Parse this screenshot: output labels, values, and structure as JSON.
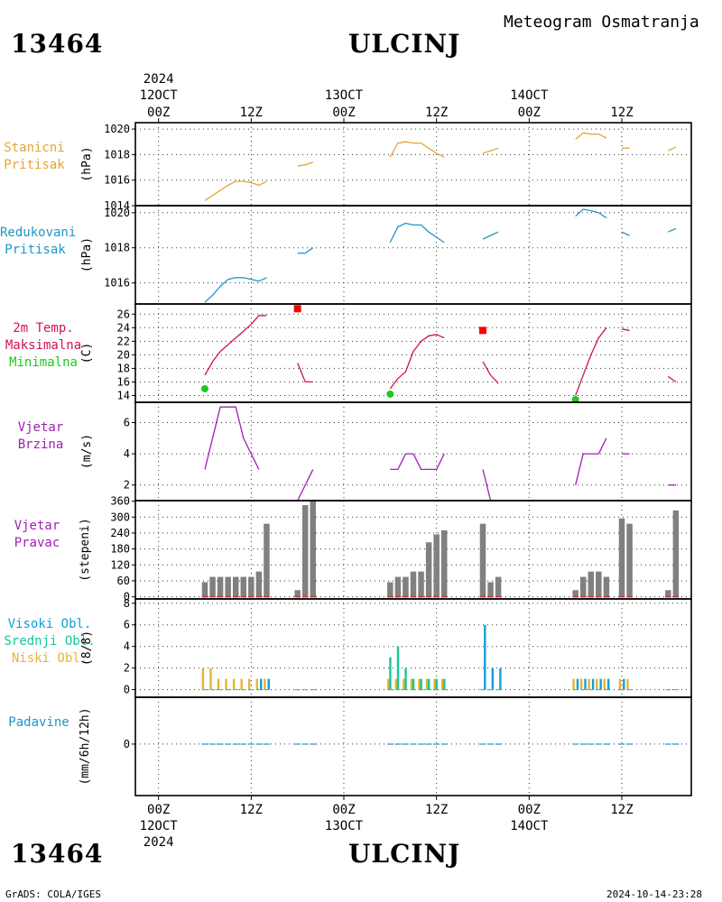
{
  "header": {
    "station_id": "13464",
    "station_name": "ULCINJ",
    "product": "Meteogram Osmatranja"
  },
  "footer": {
    "station_id": "13464",
    "station_name": "ULCINJ",
    "credit": "GrADS: COLA/IGES",
    "timestamp": "2024-10-14-23:28"
  },
  "time_axis": {
    "year": "2024",
    "ticks": [
      {
        "hour": 0,
        "top": "00Z",
        "date": "12OCT"
      },
      {
        "hour": 12,
        "top": "12Z",
        "date": ""
      },
      {
        "hour": 24,
        "top": "00Z",
        "date": "13OCT"
      },
      {
        "hour": 36,
        "top": "12Z",
        "date": ""
      },
      {
        "hour": 48,
        "top": "00Z",
        "date": "14OCT"
      },
      {
        "hour": 60,
        "top": "12Z",
        "date": ""
      }
    ],
    "range_hours": [
      -3,
      69
    ]
  },
  "colors": {
    "station_pressure": "#e6a532",
    "reduced_pressure": "#1e96c8",
    "max_temp": "#d2144b",
    "min_temp": "#1ec81e",
    "wind": "#a01eb4",
    "direction_bar": "#808080",
    "direction_tick": "#c83232",
    "high_cloud": "#0ea0dc",
    "mid_cloud": "#14c896",
    "low_cloud": "#e6b432",
    "precip": "#1e96c8",
    "marker_max": "#ff0000",
    "marker_min": "#1ec81e"
  },
  "panels": {
    "station_pressure": {
      "label_lines": [
        "Stanicni",
        "Pritisak"
      ],
      "unit": "(hPa)"
    },
    "reduced_pressure": {
      "label_lines": [
        "Redukovani",
        "Pritisak"
      ],
      "unit": "(hPa)"
    },
    "temperature": {
      "label_lines": [
        "2m Temp.",
        "Maksimalna",
        "Minimalna"
      ],
      "unit": "(C)"
    },
    "wind_speed": {
      "label_lines": [
        "Vjetar",
        "Brzina"
      ],
      "unit": "(m/s)"
    },
    "wind_direction": {
      "label_lines": [
        "Vjetar",
        "Pravac"
      ],
      "unit": "(stepeni)"
    },
    "clouds": {
      "label_lines": [
        "Visoki Obl.",
        "Srednji Obl.",
        "Niski Obl."
      ],
      "unit": "(8/8)"
    },
    "precipitation": {
      "label_lines": [
        "Padavine"
      ],
      "unit": "(mm/6h/12h)"
    }
  },
  "chart_data": [
    {
      "type": "line",
      "panel": "station_pressure",
      "ylim": [
        1014,
        1020.5
      ],
      "yticks": [
        1014,
        1016,
        1018,
        1020
      ],
      "grid": true,
      "series": [
        {
          "segments": [
            [
              [
                6,
                1014.4
              ],
              [
                7,
                1014.8
              ],
              [
                8,
                1015.2
              ],
              [
                9,
                1015.6
              ],
              [
                10,
                1015.9
              ],
              [
                11,
                1015.9
              ],
              [
                12,
                1015.8
              ],
              [
                13,
                1015.6
              ],
              [
                14,
                1015.9
              ]
            ],
            [
              [
                18,
                1017.1
              ],
              [
                19,
                1017.2
              ],
              [
                20,
                1017.4
              ]
            ],
            [
              [
                30,
                1017.8
              ],
              [
                31,
                1018.9
              ],
              [
                32,
                1019.0
              ],
              [
                33,
                1018.9
              ],
              [
                34,
                1018.9
              ],
              [
                35,
                1018.5
              ],
              [
                36,
                1018.1
              ],
              [
                37,
                1017.8
              ]
            ],
            [
              [
                42,
                1018.1
              ],
              [
                43,
                1018.3
              ],
              [
                44,
                1018.5
              ]
            ],
            [
              [
                54,
                1019.2
              ],
              [
                55,
                1019.7
              ],
              [
                56,
                1019.6
              ],
              [
                57,
                1019.6
              ],
              [
                58,
                1019.3
              ]
            ],
            [
              [
                60,
                1018.5
              ],
              [
                61,
                1018.5
              ]
            ],
            [
              [
                66,
                1018.3
              ],
              [
                67,
                1018.6
              ]
            ]
          ]
        }
      ]
    },
    {
      "type": "line",
      "panel": "reduced_pressure",
      "ylim": [
        1014.8,
        1020.4
      ],
      "yticks": [
        1016,
        1018,
        1020
      ],
      "grid": true,
      "series": [
        {
          "segments": [
            [
              [
                6,
                1014.9
              ],
              [
                7,
                1015.3
              ],
              [
                8,
                1015.8
              ],
              [
                9,
                1016.2
              ],
              [
                10,
                1016.3
              ],
              [
                11,
                1016.3
              ],
              [
                12,
                1016.2
              ],
              [
                13,
                1016.1
              ],
              [
                14,
                1016.3
              ]
            ],
            [
              [
                18,
                1017.7
              ],
              [
                19,
                1017.7
              ],
              [
                20,
                1018.0
              ]
            ],
            [
              [
                30,
                1018.3
              ],
              [
                31,
                1019.2
              ],
              [
                32,
                1019.4
              ],
              [
                33,
                1019.3
              ],
              [
                34,
                1019.3
              ],
              [
                35,
                1018.9
              ],
              [
                36,
                1018.6
              ],
              [
                37,
                1018.3
              ]
            ],
            [
              [
                42,
                1018.5
              ],
              [
                43,
                1018.7
              ],
              [
                44,
                1018.9
              ]
            ],
            [
              [
                54,
                1019.8
              ],
              [
                55,
                1020.2
              ],
              [
                56,
                1020.1
              ],
              [
                57,
                1020.0
              ],
              [
                58,
                1019.7
              ]
            ],
            [
              [
                60,
                1018.9
              ],
              [
                61,
                1018.7
              ]
            ],
            [
              [
                66,
                1018.9
              ],
              [
                67,
                1019.1
              ]
            ]
          ]
        }
      ]
    },
    {
      "type": "line",
      "panel": "temperature",
      "ylim": [
        13,
        27.5
      ],
      "yticks": [
        14,
        16,
        18,
        20,
        22,
        24,
        26
      ],
      "grid": true,
      "series": [
        {
          "segments": [
            [
              [
                6,
                17.0
              ],
              [
                7,
                19.0
              ],
              [
                8,
                20.5
              ],
              [
                9,
                21.5
              ],
              [
                10,
                22.5
              ],
              [
                11,
                23.5
              ],
              [
                12,
                24.5
              ],
              [
                13,
                25.8
              ],
              [
                14,
                25.8
              ]
            ],
            [
              [
                18,
                18.8
              ],
              [
                19,
                16.0
              ],
              [
                20,
                16.0
              ]
            ],
            [
              [
                30,
                15.0
              ],
              [
                31,
                16.5
              ],
              [
                32,
                17.5
              ],
              [
                33,
                20.5
              ],
              [
                34,
                22.0
              ],
              [
                35,
                22.8
              ],
              [
                36,
                23.0
              ],
              [
                37,
                22.5
              ]
            ],
            [
              [
                42,
                19.0
              ],
              [
                43,
                17.0
              ],
              [
                44,
                15.8
              ]
            ],
            [
              [
                54,
                14.0
              ],
              [
                55,
                17.0
              ],
              [
                56,
                20.0
              ],
              [
                57,
                22.5
              ],
              [
                58,
                24.0
              ]
            ],
            [
              [
                60,
                23.8
              ],
              [
                61,
                23.6
              ]
            ],
            [
              [
                66,
                16.8
              ],
              [
                67,
                16.0
              ]
            ]
          ]
        }
      ],
      "max_markers": [
        [
          18,
          26.8
        ],
        [
          42,
          23.6
        ]
      ],
      "min_markers": [
        [
          6,
          15.0
        ],
        [
          30,
          14.2
        ],
        [
          54,
          13.4
        ]
      ]
    },
    {
      "type": "line",
      "panel": "wind_speed",
      "ylim": [
        1,
        7.3
      ],
      "yticks": [
        2,
        4,
        6
      ],
      "grid": true,
      "series": [
        {
          "segments": [
            [
              [
                6,
                3
              ],
              [
                8,
                7
              ],
              [
                10,
                7
              ],
              [
                11,
                5
              ],
              [
                12,
                4
              ],
              [
                13,
                3
              ]
            ],
            [
              [
                18,
                1
              ],
              [
                20,
                3
              ]
            ],
            [
              [
                30,
                3
              ],
              [
                31,
                3
              ],
              [
                32,
                4
              ],
              [
                33,
                4
              ],
              [
                34,
                3
              ],
              [
                35,
                3
              ],
              [
                36,
                3
              ],
              [
                37,
                4
              ]
            ],
            [
              [
                42,
                3
              ],
              [
                43,
                1
              ],
              [
                44,
                1
              ]
            ],
            [
              [
                54,
                2
              ],
              [
                55,
                4
              ],
              [
                56,
                4
              ],
              [
                57,
                4
              ],
              [
                58,
                5
              ]
            ],
            [
              [
                60,
                4
              ],
              [
                61,
                4
              ]
            ],
            [
              [
                66,
                2
              ],
              [
                67,
                2
              ]
            ]
          ]
        }
      ]
    },
    {
      "type": "bar",
      "panel": "wind_direction",
      "ylim": [
        -8,
        362
      ],
      "yticks": [
        0,
        60,
        120,
        180,
        240,
        300,
        360
      ],
      "grid": true,
      "x": [
        6,
        7,
        8,
        9,
        10,
        11,
        12,
        13,
        14,
        18,
        19,
        20,
        30,
        31,
        32,
        33,
        34,
        35,
        36,
        37,
        42,
        43,
        44,
        54,
        55,
        56,
        57,
        58,
        60,
        61,
        66,
        67
      ],
      "values": [
        55,
        75,
        75,
        75,
        75,
        75,
        75,
        95,
        275,
        25,
        345,
        360,
        55,
        75,
        75,
        95,
        95,
        205,
        235,
        250,
        275,
        55,
        75,
        25,
        75,
        95,
        95,
        75,
        295,
        275,
        25,
        325
      ]
    },
    {
      "type": "bar",
      "panel": "clouds",
      "ylim": [
        -0.7,
        8.4
      ],
      "yticks": [
        0,
        2,
        4,
        6,
        8
      ],
      "grid": true,
      "x": [
        6,
        7,
        8,
        9,
        10,
        11,
        12,
        13,
        14,
        18,
        19,
        20,
        30,
        31,
        32,
        33,
        34,
        35,
        36,
        37,
        42,
        43,
        44,
        54,
        55,
        56,
        57,
        58,
        60,
        61,
        66,
        67
      ],
      "series": [
        {
          "name": "Visoki Obl.",
          "values": [
            0,
            0,
            0,
            0,
            0,
            0,
            0,
            1,
            1,
            0,
            0,
            0,
            0,
            0,
            0,
            0,
            0,
            0,
            0,
            0,
            6,
            2,
            2,
            1,
            1,
            1,
            1,
            1,
            1,
            0,
            0,
            0
          ]
        },
        {
          "name": "Srednji Obl.",
          "values": [
            0,
            0,
            0,
            0,
            0,
            0,
            0,
            0,
            0,
            0,
            0,
            0,
            3,
            4,
            2,
            1,
            1,
            1,
            1,
            1,
            0,
            0,
            0,
            0,
            0,
            0,
            0,
            0,
            0,
            0,
            0,
            0
          ]
        },
        {
          "name": "Niski Obl.",
          "values": [
            2,
            2,
            1,
            1,
            1,
            1,
            1,
            1,
            1,
            0,
            0,
            0,
            1,
            1,
            1,
            1,
            1,
            1,
            1,
            1,
            0,
            0,
            0,
            1,
            1,
            1,
            1,
            1,
            1,
            1,
            0,
            0
          ]
        }
      ]
    },
    {
      "type": "bar",
      "panel": "precipitation",
      "ylim": [
        -1.1,
        1.0
      ],
      "yticks": [
        0
      ],
      "grid": true,
      "x": [
        6,
        7,
        8,
        9,
        10,
        11,
        12,
        13,
        14,
        18,
        19,
        20,
        30,
        31,
        32,
        33,
        34,
        35,
        36,
        37,
        42,
        43,
        44,
        54,
        55,
        56,
        57,
        58,
        60,
        61,
        66,
        67
      ],
      "values": [
        0,
        0,
        0,
        0,
        0,
        0,
        0,
        0,
        0,
        0,
        0,
        0,
        0,
        0,
        0,
        0,
        0,
        0,
        0,
        0,
        0,
        0,
        0,
        0,
        0,
        0,
        0,
        0,
        0,
        0,
        0,
        0
      ]
    }
  ]
}
